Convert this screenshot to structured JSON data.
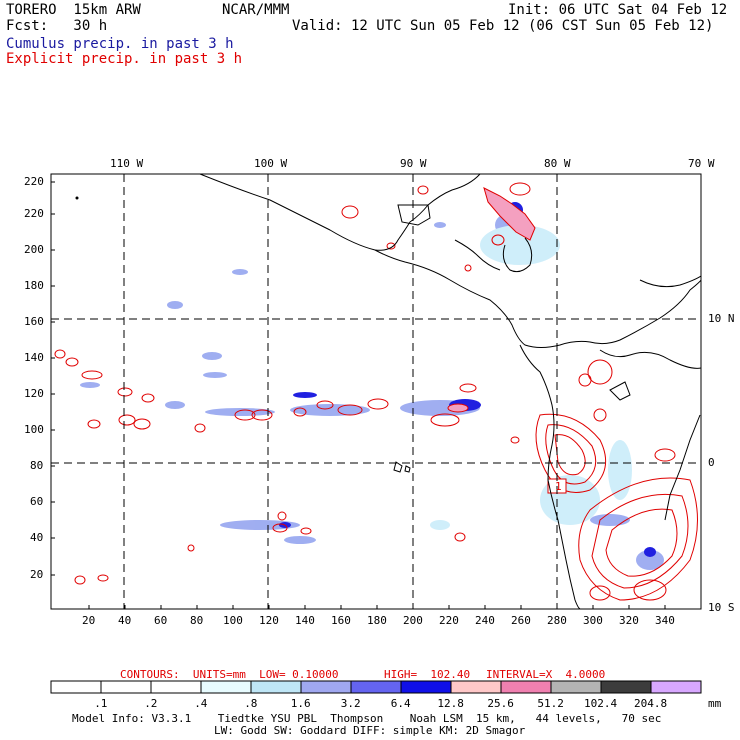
{
  "header": {
    "model": "TORERO  15km ARW",
    "center": "NCAR/MMM",
    "init": "Init: 06 UTC Sat 04 Feb 12",
    "fcst": "Fcst:   30 h",
    "valid": "Valid: 12 UTC Sun 05 Feb 12 (06 CST Sun 05 Feb 12)",
    "legend_cumulus": "Cumulus precip. in past 3 h",
    "legend_explicit": "Explicit precip. in past 3 h"
  },
  "map": {
    "top_lon_labels": [
      "110 W",
      "100 W",
      "90 W",
      "80 W",
      "70 W"
    ],
    "right_lat_labels": [
      "10 N",
      "0",
      "10 S"
    ],
    "y_ticks": [
      "20",
      "40",
      "60",
      "80",
      "100",
      "120",
      "140",
      "160",
      "180",
      "200",
      "220"
    ],
    "x_ticks": [
      "20",
      "40",
      "60",
      "80",
      "100",
      "120",
      "140",
      "160",
      "180",
      "200",
      "220",
      "240",
      "260",
      "280",
      "300",
      "320"
    ],
    "box_label": "1"
  },
  "footer": {
    "contours_label": "CONTOURS:  UNITS=mm  LOW= 0.10000",
    "high_label": "HIGH=  102.40",
    "interval_label": "INTERVAL=X  4.0000",
    "units": "mm",
    "scale_labels": [
      ".1",
      ".2",
      ".4",
      ".8",
      "1.6",
      "3.2",
      "6.4",
      "12.8",
      "25.6",
      "51.2",
      "102.4",
      "204.8"
    ],
    "scale_colors": [
      "#ffffff",
      "#ffffff",
      "#ffffff",
      "#e8fcff",
      "#bfe6f6",
      "#a0a8f0",
      "#6464f0",
      "#1010e8",
      "#ffc8c8",
      "#f080b0",
      "#b4b4b4",
      "#3c3c3c",
      "#d8a8ff"
    ],
    "model_info_1": "Model Info: V3.3.1    Tiedtke YSU PBL  Thompson    Noah LSM  15 km,   44 levels,   70 sec",
    "model_info_2": "LW: Godd SW: Goddard DIFF: simple KM: 2D Smagor"
  }
}
